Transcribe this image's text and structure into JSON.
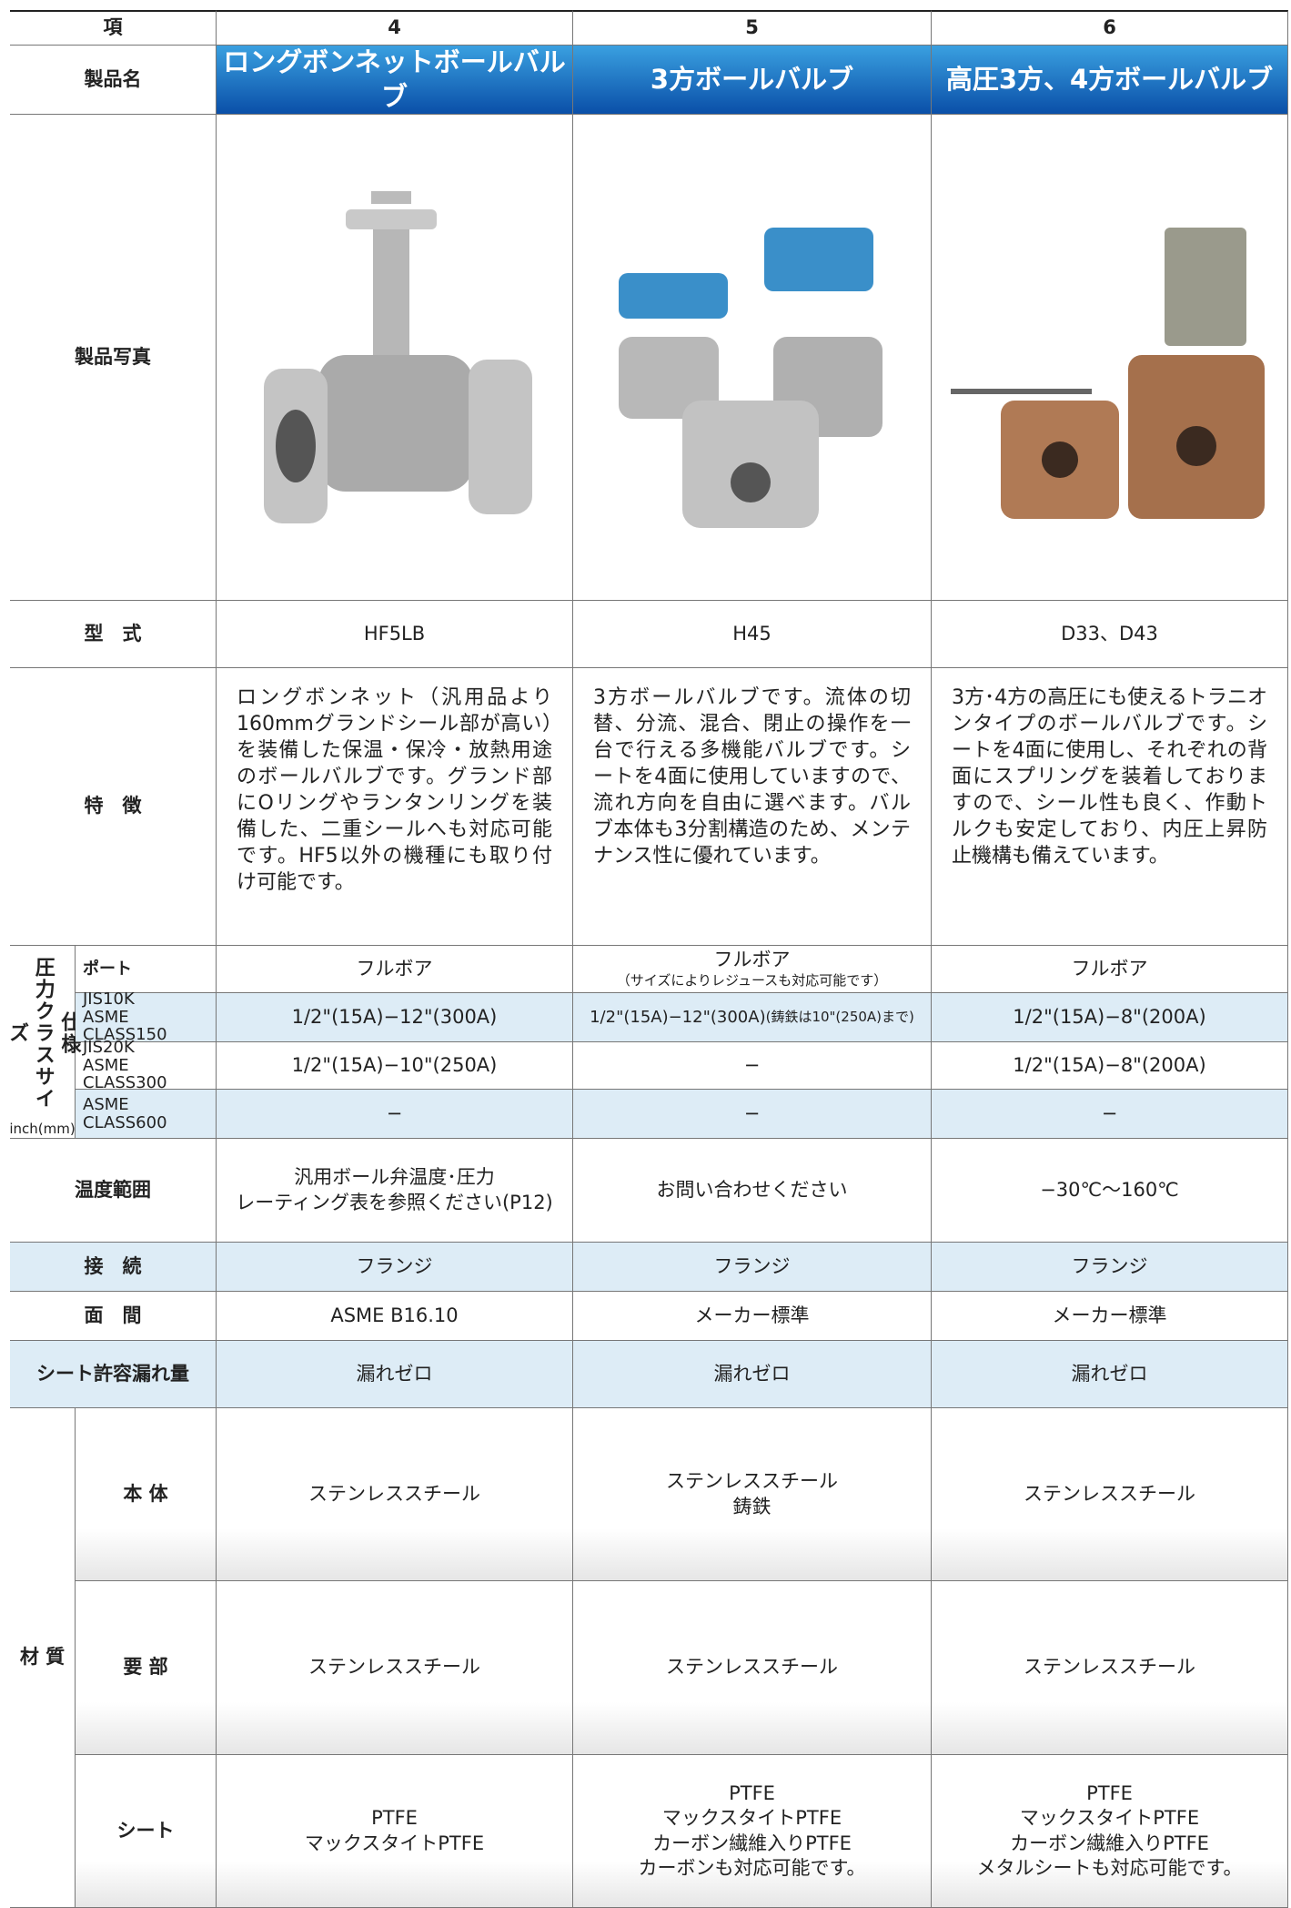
{
  "table": {
    "header": {
      "label": "項",
      "cols": [
        "4",
        "5",
        "6"
      ]
    },
    "product_name": {
      "label": "製品名",
      "values": [
        "ロングボンネットボールバルブ",
        "3方ボールバルブ",
        "高圧3方、4方ボールバルブ"
      ]
    },
    "photo": {
      "label": "製品写真"
    },
    "model": {
      "label": "型　式",
      "values": [
        "HF5LB",
        "H45",
        "D33、D43"
      ]
    },
    "features": {
      "label": "特　徴",
      "values": [
        "ロングボンネット（汎用品より160mmグランドシール部が高い）を装備した保温・保冷・放熱用途のボールバルブです。グランド部にOリングやランタンリングを装備した、二重シールへも対応可能です。HF5以外の機種にも取り付け可能です。",
        "3方ボールバルブです。流体の切替、分流、混合、閉止の操作を一台で行える多機能バルブです。シートを4面に使用していますので、流れ方向を自由に選べます。バルブ本体も3分割構造のため、メンテナンス性に優れています。",
        "3方･4方の高圧にも使えるトラニオンタイプのボールバルブです。シートを4面に使用し、それぞれの背面にスプリングを装着しておりますので、シール性も良く、作動トルクも安定しており、内圧上昇防止機構も備えています。"
      ]
    },
    "pressure_class": {
      "label_spec": "仕様",
      "label": "圧力クラスサイズ",
      "unit": "inch(mm)",
      "port": {
        "label": "ポート",
        "values": [
          "フルボア",
          "フルボア",
          "フルボア"
        ],
        "note": "（サイズによりレジュースも対応可能です）"
      },
      "jis10k": {
        "label": [
          "JIS10K",
          "ASME CLASS150"
        ],
        "values": [
          "1/2\"(15A)−12\"(300A)",
          "1/2\"(15A)−12\"(300A)",
          "1/2\"(15A)−8\"(200A)"
        ],
        "note": "(鋳鉄は10\"(250A)まで)"
      },
      "jis20k": {
        "label": [
          "JIS20K",
          "ASME CLASS300"
        ],
        "values": [
          "1/2\"(15A)−10\"(250A)",
          "−",
          "1/2\"(15A)−8\"(200A)"
        ]
      },
      "class600": {
        "label": "ASME CLASS600",
        "values": [
          "−",
          "−",
          "−"
        ]
      }
    },
    "temperature": {
      "label": "温度範囲",
      "values": [
        [
          "汎用ボール弁温度･圧力",
          "レーティング表を参照ください(P12)"
        ],
        "お問い合わせください",
        "−30℃〜160℃"
      ]
    },
    "connection": {
      "label": "接　続",
      "values": [
        "フランジ",
        "フランジ",
        "フランジ"
      ]
    },
    "face_to_face": {
      "label": "面　間",
      "values": [
        "ASME B16.10",
        "メーカー標準",
        "メーカー標準"
      ]
    },
    "seat_leakage": {
      "label": "シート許容漏れ量",
      "values": [
        "漏れゼロ",
        "漏れゼロ",
        "漏れゼロ"
      ]
    },
    "material": {
      "label": "材 質",
      "body": {
        "label": "本 体",
        "values": [
          "ステンレススチール",
          [
            "ステンレススチール",
            "鋳鉄"
          ],
          "ステンレススチール"
        ]
      },
      "key_parts": {
        "label": "要 部",
        "values": [
          "ステンレススチール",
          "ステンレススチール",
          "ステンレススチール"
        ]
      },
      "seat": {
        "label": "シート",
        "values": [
          [
            "PTFE",
            "マックスタイトPTFE"
          ],
          [
            "PTFE",
            "マックスタイトPTFE",
            "カーボン繊維入りPTFE",
            "カーボンも対応可能です。"
          ],
          [
            "PTFE",
            "マックスタイトPTFE",
            "カーボン繊維入りPTFE",
            "メタルシートも対応可能です。"
          ]
        ]
      }
    }
  }
}
